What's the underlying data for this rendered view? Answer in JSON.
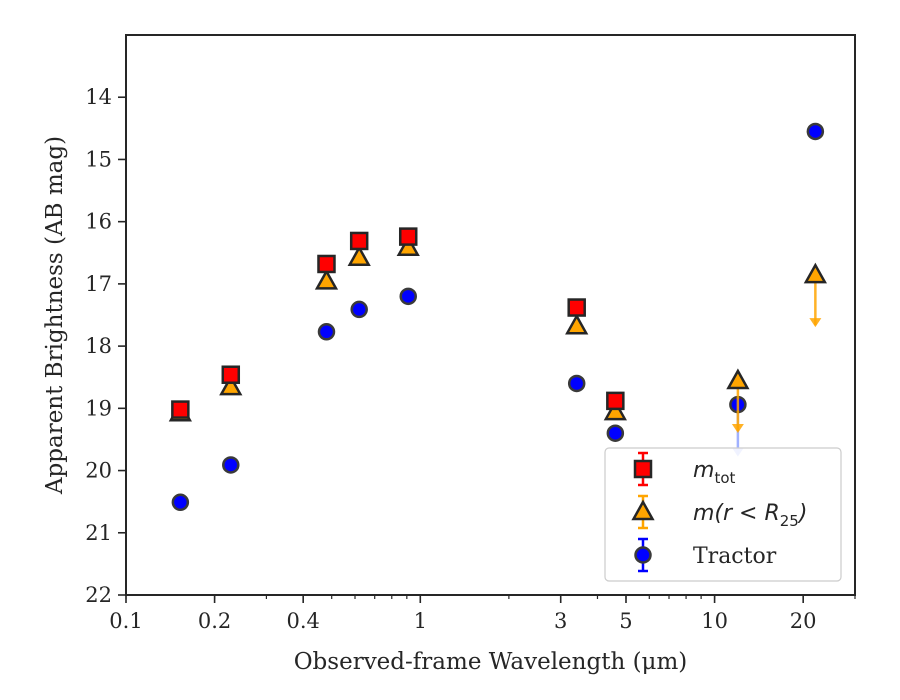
{
  "chart_data": {
    "type": "scatter",
    "xlabel": "Observed-frame Wavelength (μm)",
    "ylabel": "Apparent Brightness (AB mag)",
    "xscale": "log",
    "xlim": [
      0.1,
      30
    ],
    "ylim": [
      22,
      13
    ],
    "y_inverted": true,
    "xticks": [
      {
        "value": 0.1,
        "label": "0.1"
      },
      {
        "value": 0.2,
        "label": "0.2"
      },
      {
        "value": 0.4,
        "label": "0.4"
      },
      {
        "value": 1,
        "label": "1"
      },
      {
        "value": 3,
        "label": "3"
      },
      {
        "value": 5,
        "label": "5"
      },
      {
        "value": 10,
        "label": "10"
      },
      {
        "value": 20,
        "label": "20"
      }
    ],
    "yticks": [
      14,
      15,
      16,
      17,
      18,
      19,
      20,
      21,
      22
    ],
    "legend_position": "bottom-right",
    "series": [
      {
        "name": "m_tot",
        "legend_label": {
          "main": "m",
          "sub": "tot"
        },
        "marker": "square",
        "color": "#ff0000",
        "errorbar_color": "#ff0000",
        "points": [
          {
            "x": 0.153,
            "y": 19.02
          },
          {
            "x": 0.227,
            "y": 18.46
          },
          {
            "x": 0.48,
            "y": 16.68
          },
          {
            "x": 0.62,
            "y": 16.31
          },
          {
            "x": 0.91,
            "y": 16.24
          },
          {
            "x": 3.4,
            "y": 17.38
          },
          {
            "x": 4.6,
            "y": 18.88
          }
        ]
      },
      {
        "name": "m(r < R25)",
        "legend_label": {
          "main": "m(r < R",
          "sub": "25",
          "end": ")"
        },
        "marker": "triangle",
        "color": "#ffa500",
        "errorbar_color": "#ffa500",
        "points": [
          {
            "x": 0.153,
            "y": 19.08
          },
          {
            "x": 0.227,
            "y": 18.66
          },
          {
            "x": 0.48,
            "y": 16.96
          },
          {
            "x": 0.62,
            "y": 16.58
          },
          {
            "x": 0.91,
            "y": 16.42
          },
          {
            "x": 3.4,
            "y": 17.68
          },
          {
            "x": 4.6,
            "y": 19.06
          },
          {
            "x": 12,
            "y": 18.56,
            "upper_limit": true
          },
          {
            "x": 22,
            "y": 16.86,
            "upper_limit": true
          }
        ]
      },
      {
        "name": "Tractor",
        "legend_label": {
          "main": "Tractor"
        },
        "marker": "circle",
        "color": "#0000ff",
        "errorbar_color": "#0000ff",
        "points": [
          {
            "x": 0.153,
            "y": 20.51
          },
          {
            "x": 0.227,
            "y": 19.91
          },
          {
            "x": 0.48,
            "y": 17.77
          },
          {
            "x": 0.62,
            "y": 17.41
          },
          {
            "x": 0.91,
            "y": 17.2
          },
          {
            "x": 3.4,
            "y": 18.6
          },
          {
            "x": 4.6,
            "y": 19.4
          },
          {
            "x": 12,
            "y": 18.94,
            "upper_limit": true
          },
          {
            "x": 22,
            "y": 14.55
          }
        ]
      }
    ]
  }
}
